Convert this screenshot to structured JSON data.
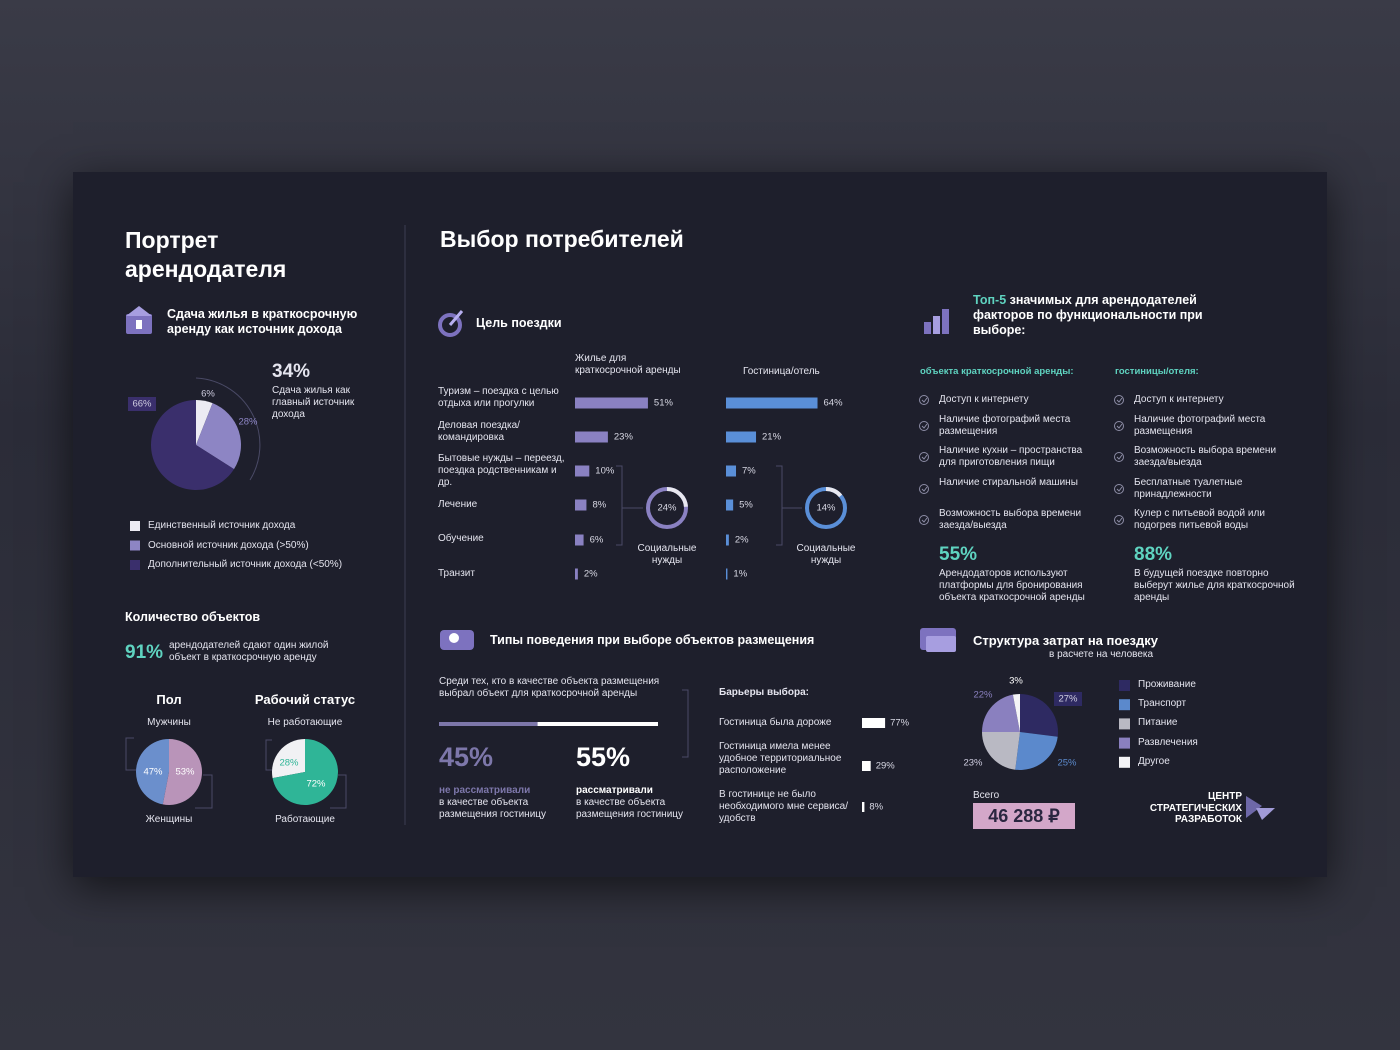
{
  "left": {
    "title": "Портрет арендодателя",
    "income": {
      "heading": "Сдача жилья в краткосрочную аренду как источник дохода",
      "highlight": "34%",
      "highlight_text": "Сдача жилья как главный источник дохода",
      "segments": [
        {
          "name": "Единственный источник дохода",
          "value": 6,
          "label": "6%",
          "color": "#ecebf3"
        },
        {
          "name": "Основной источник дохода (>50%)",
          "value": 28,
          "label": "28%",
          "color": "#8d85c4"
        },
        {
          "name": "Дополнительный источник дохода (<50%)",
          "value": 66,
          "label": "66%",
          "color": "#3a2f6c"
        }
      ]
    },
    "objects": {
      "heading": "Количество объектов",
      "highlight": "91%",
      "text": "арендодателей сдают один жилой объект в краткосрочную аренду"
    },
    "gender": {
      "title": "Пол",
      "segments": [
        {
          "name": "Мужчины",
          "value": 47,
          "label": "47%",
          "color": "#6b8fcc"
        },
        {
          "name": "Женщины",
          "value": 53,
          "label": "53%",
          "color": "#b994b9"
        }
      ]
    },
    "work": {
      "title": "Рабочий статус",
      "segments": [
        {
          "name": "Не работающие",
          "value": 28,
          "label": "28%",
          "color": "#f1f1f4"
        },
        {
          "name": "Работающие",
          "value": 72,
          "label": "72%",
          "color": "#2fb597"
        }
      ]
    }
  },
  "right": {
    "title": "Выбор потребителей",
    "trip": {
      "heading": "Цель поездки",
      "rent_title": "Жилье для краткосрочной аренды",
      "hotel_title": "Гостиница/отель",
      "rent_color": "#8a81c2",
      "hotel_color": "#5a8fd8",
      "rows": [
        {
          "label": "Туризм – поездка с целью отдыха или прогулки",
          "rent": {
            "value": 51,
            "label": "51%"
          },
          "hotel": {
            "value": 64,
            "label": "64%"
          }
        },
        {
          "label": "Деловая поездка/ командировка",
          "rent": {
            "value": 23,
            "label": "23%"
          },
          "hotel": {
            "value": 21,
            "label": "21%"
          }
        },
        {
          "label": "Бытовые нужды – переезд, поездка родственникам и др.",
          "rent": {
            "value": 10,
            "label": "10%"
          },
          "hotel": {
            "value": 7,
            "label": "7%"
          }
        },
        {
          "label": "Лечение",
          "rent": {
            "value": 8,
            "label": "8%"
          },
          "hotel": {
            "value": 5,
            "label": "5%"
          }
        },
        {
          "label": "Обучение",
          "rent": {
            "value": 6,
            "label": "6%"
          },
          "hotel": {
            "value": 2,
            "label": "2%"
          }
        },
        {
          "label": "Транзит",
          "rent": {
            "value": 2,
            "label": "2%"
          },
          "hotel": {
            "value": 1,
            "label": "1%"
          }
        }
      ],
      "social": {
        "label": "Социальные нужды",
        "rent": {
          "value": 24,
          "label": "24%"
        },
        "hotel": {
          "value": 14,
          "label": "14%"
        }
      }
    },
    "top5": {
      "accent": "Топ-5",
      "heading": "значимых для арендодателей факторов по функциональности при выборе:",
      "rent": {
        "title": "объекта краткосрочной аренды:",
        "items": [
          "Доступ к интернету",
          "Наличие фотографий места размещения",
          "Наличие кухни – пространства для приготовления пищи",
          "Наличие стиральной машины",
          "Возможность выбора времени заезда/выезда"
        ],
        "highlight": "55%",
        "text": "Арендодаторов используют платформы для бронирования объекта краткосрочной аренды"
      },
      "hotel": {
        "title": "гостиницы/отеля:",
        "items": [
          "Доступ к интернету",
          "Наличие фотографий места размещения",
          "Возможность выбора времени заезда/выезда",
          "Бесплатные туалетные принадлежности",
          "Кулер с питьевой водой или подогрев питьевой воды"
        ],
        "highlight": "88%",
        "text": "В будущей поездке повторно выберут жилье для краткосрочной аренды"
      }
    },
    "behavior": {
      "heading": "Типы поведения при выборе объектов размещения",
      "intro": "Среди тех, кто в качестве объекта размещения выбрал объект для краткосрочной аренды",
      "groups": [
        {
          "value": 45,
          "label": "45%",
          "accent": "не рассматривали",
          "text": "в качестве объекта размещения гостиницу",
          "color": "#7d77aa"
        },
        {
          "value": 55,
          "label": "55%",
          "accent": "рассматривали",
          "text": "в качестве объекта размещения гостиницу",
          "color": "#ffffff"
        }
      ],
      "barriers": {
        "title": "Барьеры выбора:",
        "items": [
          {
            "label": "Гостиница была дороже",
            "value": 77,
            "value_label": "77%"
          },
          {
            "label": "Гостиница имела менее удобное территориальное расположение",
            "value": 29,
            "value_label": "29%"
          },
          {
            "label": "В гостинице не было необходимого мне сервиса/удобств",
            "value": 8,
            "value_label": "8%"
          }
        ]
      }
    },
    "costs": {
      "heading": "Структура затрат на поездку",
      "subheading": "в расчете на человека",
      "segments": [
        {
          "name": "Проживание",
          "value": 27,
          "label": "27%",
          "color": "#2e2a62"
        },
        {
          "name": "Транспорт",
          "value": 25,
          "label": "25%",
          "color": "#5b89cc"
        },
        {
          "name": "Питание",
          "value": 23,
          "label": "23%",
          "color": "#b9b9c3"
        },
        {
          "name": "Развлечения",
          "value": 22,
          "label": "22%",
          "color": "#8a80bf"
        },
        {
          "name": "Другое",
          "value": 3,
          "label": "3%",
          "color": "#f4f4f7"
        }
      ],
      "total_label": "Всего",
      "total": "46 288 ₽"
    }
  },
  "logo": [
    "ЦЕНТР",
    "СТРАТЕГИЧЕСКИХ",
    "РАЗРАБОТОК"
  ]
}
